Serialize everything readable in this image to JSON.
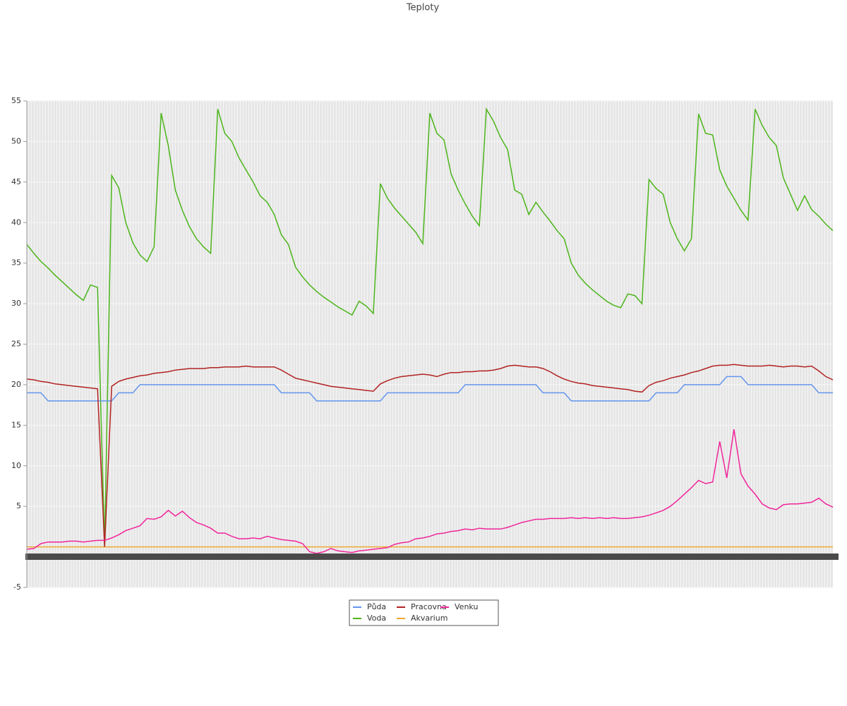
{
  "chart_data": {
    "type": "line",
    "title": "Teploty",
    "ylim": [
      -5,
      55
    ],
    "yticks": [
      -5,
      5,
      10,
      15,
      20,
      25,
      30,
      35,
      40,
      45,
      50,
      55
    ],
    "grid": true,
    "legend": "bottom",
    "series": [
      {
        "name": "Půda",
        "color": "#6495ed",
        "values": [
          19,
          19,
          19,
          18,
          18,
          18,
          18,
          18,
          18,
          18,
          18,
          18,
          18,
          19,
          19,
          19,
          20,
          20,
          20,
          20,
          20,
          20,
          20,
          20,
          20,
          20,
          20,
          20,
          20,
          20,
          20,
          20,
          20,
          20,
          20,
          20,
          19,
          19,
          19,
          19,
          19,
          18,
          18,
          18,
          18,
          18,
          18,
          18,
          18,
          18,
          18,
          19,
          19,
          19,
          19,
          19,
          19,
          19,
          19,
          19,
          19,
          19,
          20,
          20,
          20,
          20,
          20,
          20,
          20,
          20,
          20,
          20,
          20,
          19,
          19,
          19,
          19,
          18,
          18,
          18,
          18,
          18,
          18,
          18,
          18,
          18,
          18,
          18,
          18,
          19,
          19,
          19,
          19,
          20,
          20,
          20,
          20,
          20,
          20,
          21,
          21,
          21,
          20,
          20,
          20,
          20,
          20,
          20,
          20,
          20,
          20,
          20,
          19,
          19,
          19
        ]
      },
      {
        "name": "Voda",
        "color": "#4cb51a",
        "values": [
          37.3,
          36.2,
          35.2,
          34.4,
          33.5,
          32.7,
          31.9,
          31.1,
          30.4,
          32.3,
          32.0,
          0,
          45.8,
          44.3,
          40,
          37.5,
          36,
          35.2,
          37,
          53.5,
          49.5,
          44,
          41.5,
          39.5,
          38,
          37,
          36.2,
          54,
          51,
          50,
          48,
          46.5,
          45,
          43.3,
          42.5,
          41,
          38.5,
          37.3,
          34.5,
          33.3,
          32.3,
          31.5,
          30.8,
          30.2,
          29.6,
          29.1,
          28.6,
          30.3,
          29.7,
          28.8,
          44.8,
          43,
          41.8,
          40.8,
          39.8,
          38.8,
          37.4,
          53.5,
          51,
          50.2,
          46,
          44,
          42.3,
          40.8,
          39.6,
          54,
          52.5,
          50.5,
          49,
          44,
          43.5,
          41,
          42.5,
          41.3,
          40.2,
          39,
          38,
          35,
          33.5,
          32.5,
          31.7,
          31,
          30.3,
          29.8,
          29.5,
          31.2,
          31,
          30,
          45.3,
          44.2,
          43.5,
          40,
          38,
          36.5,
          38,
          53.4,
          51,
          50.8,
          46.5,
          44.5,
          43,
          41.5,
          40.3,
          54,
          52,
          50.5,
          49.5,
          45.5,
          43.5,
          41.5,
          43.3,
          41.6,
          40.8,
          39.8,
          39
        ]
      },
      {
        "name": "Pracovna",
        "color": "#b22222",
        "values": [
          20.7,
          20.6,
          20.4,
          20.3,
          20.1,
          20.0,
          19.9,
          19.8,
          19.7,
          19.6,
          19.5,
          0,
          19.8,
          20.4,
          20.7,
          20.9,
          21.1,
          21.2,
          21.4,
          21.5,
          21.6,
          21.8,
          21.9,
          22.0,
          22.0,
          22.0,
          22.1,
          22.1,
          22.2,
          22.2,
          22.2,
          22.3,
          22.2,
          22.2,
          22.2,
          22.2,
          21.8,
          21.3,
          20.8,
          20.6,
          20.4,
          20.2,
          20.0,
          19.8,
          19.7,
          19.6,
          19.5,
          19.4,
          19.3,
          19.2,
          20.1,
          20.5,
          20.8,
          21.0,
          21.1,
          21.2,
          21.3,
          21.2,
          21.0,
          21.3,
          21.5,
          21.5,
          21.6,
          21.6,
          21.7,
          21.7,
          21.8,
          22.0,
          22.3,
          22.4,
          22.3,
          22.2,
          22.2,
          22.0,
          21.6,
          21.1,
          20.7,
          20.4,
          20.2,
          20.1,
          19.9,
          19.8,
          19.7,
          19.6,
          19.5,
          19.4,
          19.2,
          19.1,
          19.9,
          20.3,
          20.5,
          20.8,
          21.0,
          21.2,
          21.5,
          21.7,
          22.0,
          22.3,
          22.4,
          22.4,
          22.5,
          22.4,
          22.3,
          22.3,
          22.3,
          22.4,
          22.3,
          22.2,
          22.3,
          22.3,
          22.2,
          22.3,
          21.7,
          21.0,
          20.6
        ]
      },
      {
        "name": "Akvarium",
        "color": "#f0a830",
        "values": [
          0,
          0,
          0,
          0,
          0,
          0,
          0,
          0,
          0,
          0,
          0,
          0,
          0,
          0,
          0,
          0,
          0,
          0,
          0,
          0,
          0,
          0,
          0,
          0,
          0,
          0,
          0,
          0,
          0,
          0,
          0,
          0,
          0,
          0,
          0,
          0,
          0,
          0,
          0,
          0,
          0,
          0,
          0,
          0,
          0,
          0,
          0,
          0,
          0,
          0,
          0,
          0,
          0,
          0,
          0,
          0,
          0,
          0,
          0,
          0,
          0,
          0,
          0,
          0,
          0,
          0,
          0,
          0,
          0,
          0,
          0,
          0,
          0,
          0,
          0,
          0,
          0,
          0,
          0,
          0,
          0,
          0,
          0,
          0,
          0,
          0,
          0,
          0,
          0,
          0,
          0,
          0,
          0,
          0,
          0,
          0,
          0,
          0,
          0,
          0,
          0,
          0,
          0,
          0,
          0,
          0,
          0,
          0,
          0,
          0,
          0,
          0,
          0,
          0,
          0
        ]
      },
      {
        "name": "Venku",
        "color": "#f0259a",
        "values": [
          -0.3,
          -0.2,
          0.4,
          0.6,
          0.6,
          0.6,
          0.7,
          0.7,
          0.6,
          0.7,
          0.8,
          0.8,
          1.1,
          1.5,
          2.0,
          2.3,
          2.6,
          3.5,
          3.4,
          3.7,
          4.5,
          3.8,
          4.4,
          3.6,
          3.0,
          2.7,
          2.3,
          1.7,
          1.7,
          1.3,
          1.0,
          1.0,
          1.1,
          1.0,
          1.3,
          1.1,
          0.9,
          0.8,
          0.7,
          0.4,
          -0.6,
          -0.8,
          -0.6,
          -0.2,
          -0.5,
          -0.6,
          -0.7,
          -0.5,
          -0.4,
          -0.3,
          -0.2,
          -0.1,
          0.3,
          0.5,
          0.6,
          1.0,
          1.1,
          1.3,
          1.6,
          1.7,
          1.9,
          2.0,
          2.2,
          2.1,
          2.3,
          2.2,
          2.2,
          2.2,
          2.4,
          2.7,
          3.0,
          3.2,
          3.4,
          3.4,
          3.5,
          3.5,
          3.5,
          3.6,
          3.5,
          3.6,
          3.5,
          3.6,
          3.5,
          3.6,
          3.5,
          3.5,
          3.6,
          3.7,
          3.9,
          4.2,
          4.5,
          5.0,
          5.7,
          6.5,
          7.3,
          8.2,
          7.8,
          8.0,
          13,
          8.5,
          14.5,
          9,
          7.5,
          6.5,
          5.3,
          4.8,
          4.6,
          5.2,
          5.3,
          5.3,
          5.4,
          5.5,
          6.0,
          5.3,
          4.9
        ]
      }
    ]
  }
}
